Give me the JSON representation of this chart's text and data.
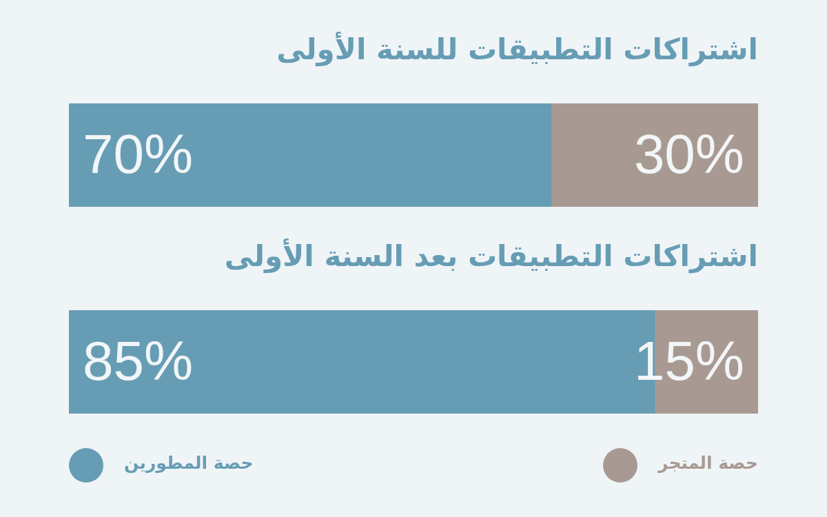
{
  "chart_data": [
    {
      "type": "bar",
      "orientation": "horizontal",
      "stacked": true,
      "title": "اشتراكات التطبيقات للسنة الأولى",
      "categories": [
        null
      ],
      "tick_labels": false,
      "legend": false,
      "series": [
        {
          "color": "#669db4",
          "values": [
            70
          ],
          "value_labels": [
            "70%"
          ]
        },
        {
          "color": "#a89a92",
          "values": [
            30
          ],
          "value_labels": [
            "30%"
          ]
        }
      ]
    },
    {
      "type": "bar",
      "orientation": "horizontal",
      "stacked": true,
      "title": "اشتراكات التطبيقات بعد السنة الأولى",
      "categories": [
        null
      ],
      "tick_labels": false,
      "legend": "bottom",
      "series": [
        {
          "name": "حصة المطورين",
          "color": "#669db4",
          "values": [
            85
          ],
          "value_labels": [
            "85%"
          ]
        },
        {
          "name": "حصة المتجر",
          "color": "#a89a92",
          "values": [
            15
          ],
          "value_labels": [
            "15%"
          ]
        }
      ]
    }
  ]
}
